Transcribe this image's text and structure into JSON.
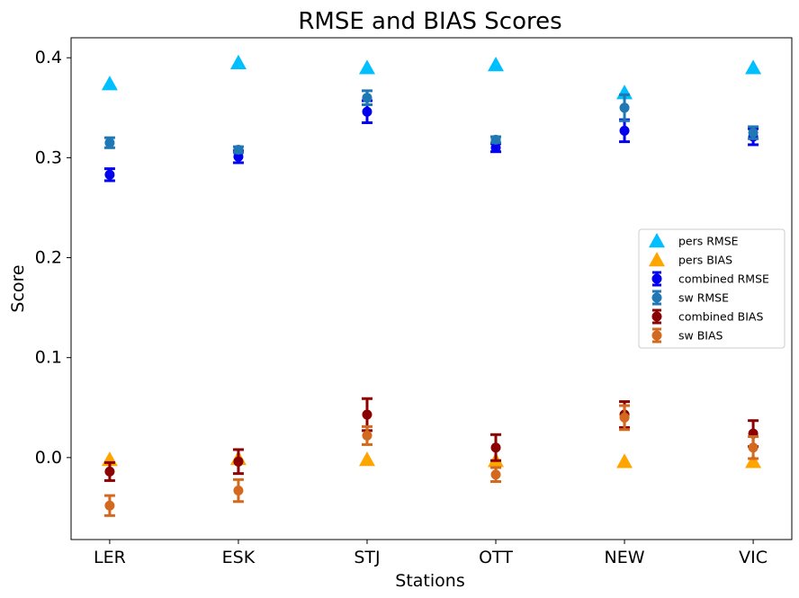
{
  "chart_data": {
    "type": "scatter",
    "title": "RMSE and BIAS Scores",
    "xlabel": "Stations",
    "ylabel": "Score",
    "categories": [
      "LER",
      "ESK",
      "STJ",
      "OTT",
      "NEW",
      "VIC"
    ],
    "ylim": [
      -0.082,
      0.42
    ],
    "yticks": [
      "0.0",
      "0.1",
      "0.2",
      "0.3",
      "0.4"
    ],
    "ytick_values": [
      0.0,
      0.1,
      0.2,
      0.3,
      0.4
    ],
    "grid": false,
    "legend_position": "right",
    "series": [
      {
        "name": "pers RMSE",
        "marker": "triangle",
        "color": "#00BFFF",
        "values": [
          0.374,
          0.395,
          0.39,
          0.393,
          0.365,
          0.39
        ]
      },
      {
        "name": "pers BIAS",
        "marker": "triangle",
        "color": "#FFA500",
        "values": [
          -0.002,
          -0.001,
          -0.002,
          -0.003,
          -0.004,
          -0.004
        ]
      },
      {
        "name": "combined RMSE",
        "marker": "circle",
        "color": "#0000EE",
        "values": [
          0.283,
          0.301,
          0.346,
          0.31,
          0.327,
          0.321
        ],
        "errors": [
          0.006,
          0.006,
          0.011,
          0.004,
          0.011,
          0.008
        ]
      },
      {
        "name": "sw RMSE",
        "marker": "circle",
        "color": "#1F77B4",
        "values": [
          0.315,
          0.308,
          0.36,
          0.318,
          0.35,
          0.325
        ],
        "errors": [
          0.005,
          0.003,
          0.007,
          0.003,
          0.013,
          0.006
        ]
      },
      {
        "name": "combined BIAS",
        "marker": "circle",
        "color": "#8B0000",
        "values": [
          -0.014,
          -0.004,
          0.043,
          0.01,
          0.043,
          0.024
        ],
        "errors": [
          0.009,
          0.012,
          0.016,
          0.013,
          0.013,
          0.013
        ]
      },
      {
        "name": "sw BIAS",
        "marker": "circle",
        "color": "#D2691E",
        "values": [
          -0.048,
          -0.033,
          0.022,
          -0.017,
          0.04,
          0.01
        ],
        "errors": [
          0.01,
          0.011,
          0.009,
          0.007,
          0.012,
          0.011
        ]
      }
    ]
  }
}
